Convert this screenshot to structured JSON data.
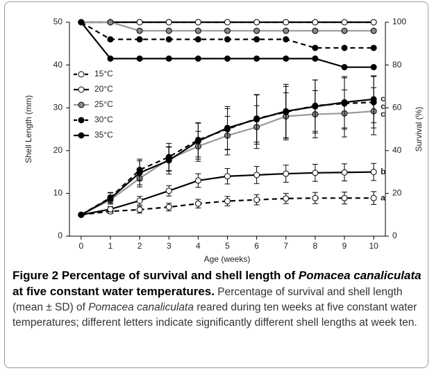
{
  "chart_data": {
    "type": "line",
    "xlabel": "Age (weeks)",
    "ylabel": "Shell Length (mm)",
    "y2label": "Survival (%)",
    "x": [
      0,
      1,
      2,
      3,
      4,
      5,
      6,
      7,
      8,
      9,
      10
    ],
    "xlim": [
      -0.4,
      10.4
    ],
    "xticks": [
      0,
      1,
      2,
      3,
      4,
      5,
      6,
      7,
      8,
      9,
      10
    ],
    "ylim": [
      0,
      50
    ],
    "yticks": [
      0,
      10,
      20,
      30,
      40,
      50
    ],
    "y2lim": [
      0,
      100
    ],
    "y2ticks": [
      0,
      20,
      40,
      60,
      80,
      100
    ],
    "series": [
      {
        "name": "15°C",
        "line": "#000",
        "dash": true,
        "color": "#fff",
        "letter": "a",
        "values": [
          5,
          5.8,
          6.2,
          6.8,
          7.6,
          8.2,
          8.5,
          8.8,
          8.9,
          8.9,
          8.9
        ],
        "errors": [
          0,
          0.5,
          0.8,
          0.9,
          1,
          1.1,
          1.2,
          1.2,
          1.3,
          1.4,
          1.5
        ],
        "survival": [
          100,
          100,
          100,
          100,
          100,
          100,
          100,
          100,
          100,
          100,
          100
        ]
      },
      {
        "name": "20°C",
        "line": "#000",
        "dash": false,
        "color": "#fff",
        "letter": "b",
        "values": [
          5,
          6.3,
          8.3,
          10.6,
          13,
          14,
          14.3,
          14.6,
          14.8,
          14.9,
          15
        ],
        "errors": [
          0,
          0.6,
          1,
          1.2,
          1.6,
          1.8,
          2,
          2,
          2,
          2,
          2
        ],
        "survival": [
          100,
          100,
          100,
          100,
          100,
          100,
          100,
          100,
          100,
          100,
          100
        ]
      },
      {
        "name": "25°C",
        "line": "#999",
        "dash": false,
        "color": "#888",
        "letter": "c",
        "values": [
          5,
          8.5,
          13.5,
          18,
          21,
          23.5,
          25.5,
          28,
          28.5,
          28.7,
          29.2
        ],
        "errors": [
          0,
          1,
          2,
          2.8,
          3.5,
          4.5,
          5,
          5.5,
          5.5,
          5.5,
          5.5
        ],
        "survival": [
          100,
          100,
          96,
          96,
          96,
          96,
          96,
          96,
          96,
          96,
          96
        ]
      },
      {
        "name": "30°C",
        "line": "#000",
        "dash": true,
        "color": "#000",
        "letter": "c",
        "values": [
          5,
          9,
          15.5,
          18.5,
          22.5,
          25,
          27.5,
          29,
          30.5,
          31,
          31.3
        ],
        "errors": [
          0,
          1.2,
          2.5,
          3.2,
          4,
          4.8,
          5.5,
          6,
          6,
          6,
          6
        ],
        "survival": [
          100,
          92,
          92,
          92,
          92,
          92,
          92,
          92,
          88,
          88,
          88
        ]
      },
      {
        "name": "35°C",
        "line": "#000",
        "dash": false,
        "color": "#000",
        "letter": "c",
        "values": [
          5,
          8.8,
          14.8,
          17.7,
          22.2,
          25.3,
          27.3,
          29.2,
          30.3,
          31.3,
          32
        ],
        "errors": [
          0,
          1.3,
          2.8,
          3.2,
          4.2,
          5,
          5.8,
          6.3,
          6.2,
          6,
          5.5
        ],
        "survival": [
          100,
          83,
          83,
          83,
          83,
          83,
          83,
          83,
          83,
          79,
          79
        ]
      }
    ]
  },
  "caption": {
    "label": "Figure 2",
    "title_a": " Percentage of survival and shell length of ",
    "species": "Pomacea canaliculata",
    "title_b": " at five constant water temperatures.",
    "text_a": " Percentage of survival and shell length (mean ± SD) of ",
    "text_b": " reared during ten weeks at five constant water temperatures; different letters indicate significantly different shell lengths at week ten."
  }
}
